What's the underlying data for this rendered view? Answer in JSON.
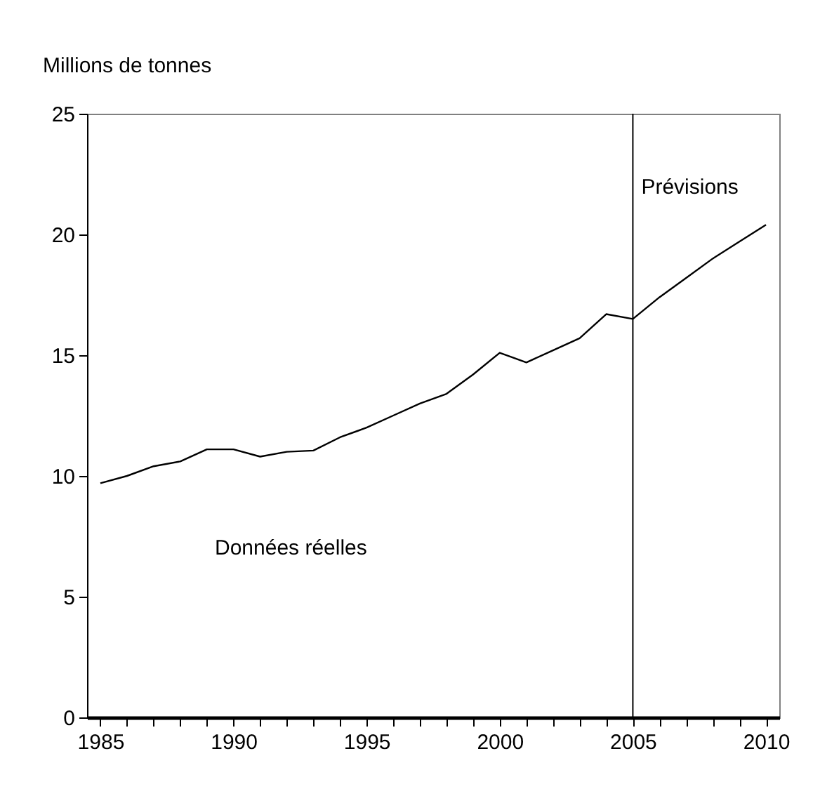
{
  "chart_data": {
    "type": "line",
    "ylabel": "Millions de  tonnes",
    "x": [
      1985,
      1986,
      1987,
      1988,
      1989,
      1990,
      1991,
      1992,
      1993,
      1994,
      1995,
      1996,
      1997,
      1998,
      1999,
      2000,
      2001,
      2002,
      2003,
      2004,
      2005,
      2006,
      2007,
      2008,
      2009,
      2010
    ],
    "series": [
      {
        "color": "#000000",
        "values": [
          9.7,
          10.0,
          10.4,
          10.6,
          11.1,
          11.1,
          10.8,
          11.0,
          11.05,
          11.6,
          12.0,
          12.5,
          13.0,
          13.4,
          14.2,
          15.1,
          14.7,
          15.2,
          15.7,
          16.7,
          16.5,
          17.4,
          18.2,
          19.0,
          19.7,
          20.4
        ]
      }
    ],
    "xlim": [
      1984.5,
      2010.5
    ],
    "xticks": [
      1985,
      {
        "value": 1986,
        "label": null
      },
      {
        "value": 1987,
        "label": null
      },
      {
        "value": 1988,
        "label": null
      },
      {
        "value": 1989,
        "label": null
      },
      1990,
      {
        "value": 1991,
        "label": null
      },
      {
        "value": 1992,
        "label": null
      },
      {
        "value": 1993,
        "label": null
      },
      {
        "value": 1994,
        "label": null
      },
      1995,
      {
        "value": 1996,
        "label": null
      },
      {
        "value": 1997,
        "label": null
      },
      {
        "value": 1998,
        "label": null
      },
      {
        "value": 1999,
        "label": null
      },
      2000,
      {
        "value": 2001,
        "label": null
      },
      {
        "value": 2002,
        "label": null
      },
      {
        "value": 2003,
        "label": null
      },
      {
        "value": 2004,
        "label": null
      },
      2005,
      {
        "value": 2006,
        "label": null
      },
      {
        "value": 2007,
        "label": null
      },
      {
        "value": 2008,
        "label": null
      },
      {
        "value": 2009,
        "label": null
      },
      2010
    ],
    "ylim": [
      0,
      25
    ],
    "yticks": [
      0,
      5,
      10,
      15,
      20,
      25
    ],
    "ref_lines": [
      {
        "axis": "x",
        "value": 2005,
        "label": "Prévisions"
      }
    ],
    "annotations": [
      "Données réelles"
    ],
    "grid": false,
    "line_style": "solid",
    "marker": "none"
  }
}
